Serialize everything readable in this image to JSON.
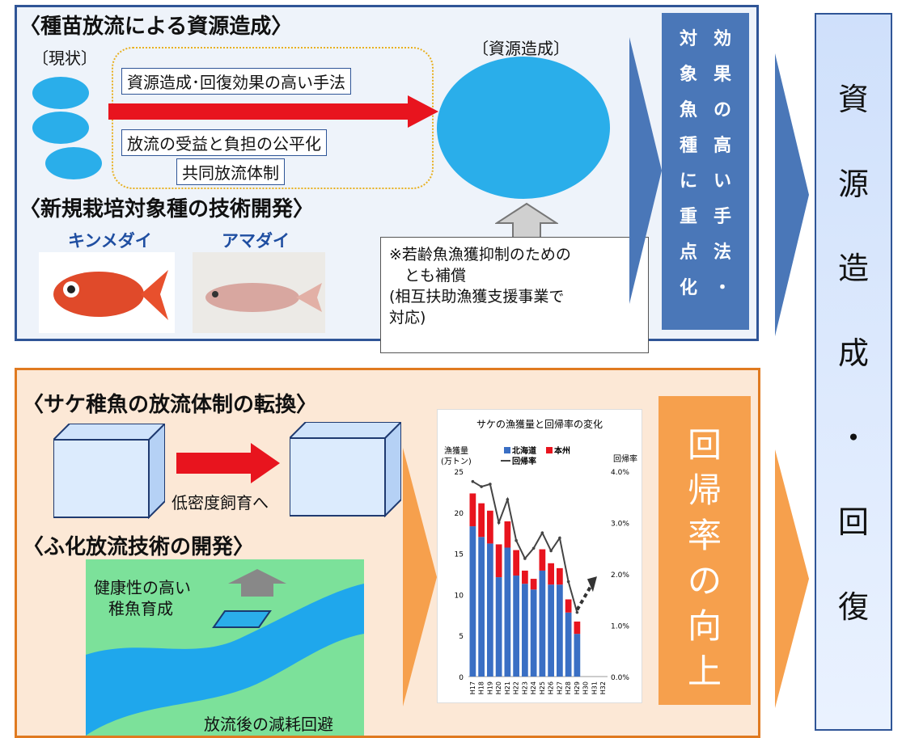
{
  "top_panel": {
    "title": "〈種苗放流による資源造成〉",
    "current_label": "〔現状〕",
    "resource_label": "〔資源造成〕",
    "method1": "資源造成･回復効果の高い手法",
    "method2": "放流の受益と負担の公平化",
    "method3": "共同放流体制",
    "new_species_title": "〈新規栽培対象種の技術開発〉",
    "species1": "キンメダイ",
    "species2": "アマダイ",
    "note_lines": [
      "※若齢魚漁獲抑制のための",
      "　とも補償",
      "(相互扶助漁獲支援事業で",
      " 対応)"
    ],
    "blue_col_left": [
      "対",
      "象",
      "魚",
      "種",
      "に",
      "重",
      "点",
      "化"
    ],
    "blue_col_right": [
      "効",
      "果",
      "の",
      "高",
      "い",
      "手",
      "法",
      "・"
    ]
  },
  "bottom_panel": {
    "title": "〈サケ稚魚の放流体制の転換〉",
    "low_density": "低密度飼育へ",
    "tech_title": "〈ふ化放流技術の開発〉",
    "healthy_lines": [
      "健康性の高い",
      "稚魚育成"
    ],
    "avoid_loss": "放流後の減耗回避",
    "orange_col": [
      "回",
      "帰",
      "率",
      "の",
      "向",
      "上"
    ]
  },
  "right_column": [
    "資",
    "源",
    "造",
    "成",
    "・",
    "回",
    "復"
  ],
  "colors": {
    "hokkaido": "#3a6fc4",
    "honshu": "#e8141e",
    "return_rate": "#444444"
  },
  "chart_data": {
    "type": "bar",
    "title": "サケの漁獲量と回帰率の変化",
    "ylabel": "漁獲量",
    "ylabel_unit": "(万トン)",
    "y2label": "回帰率",
    "ylim": [
      0,
      25
    ],
    "y2lim": [
      0,
      4
    ],
    "yticks": [
      "0",
      "5",
      "10",
      "15",
      "20",
      "25"
    ],
    "y2ticks": [
      "0.0%",
      "1.0%",
      "2.0%",
      "3.0%",
      "4.0%"
    ],
    "categories": [
      "H17",
      "H18",
      "H19",
      "H20",
      "H21",
      "H22",
      "H23",
      "H24",
      "H25",
      "H26",
      "H27",
      "H28",
      "H29",
      "H30",
      "H31",
      "H32"
    ],
    "series": [
      {
        "name": "北海道",
        "type": "bar",
        "values": [
          18.3,
          17.0,
          16.2,
          12.1,
          15.7,
          12.3,
          11.3,
          10.6,
          12.9,
          11.2,
          11.2,
          7.8,
          5.2,
          null,
          null,
          null
        ]
      },
      {
        "name": "本州",
        "type": "bar",
        "values": [
          4.0,
          4.1,
          4.0,
          4.0,
          3.2,
          3.1,
          1.6,
          1.3,
          2.6,
          2.6,
          2.0,
          1.6,
          1.5,
          null,
          null,
          null
        ]
      },
      {
        "name": "回帰率",
        "type": "line",
        "values": [
          3.8,
          3.7,
          3.75,
          3.0,
          3.45,
          2.65,
          2.3,
          2.5,
          2.8,
          2.45,
          2.7,
          1.85,
          1.25,
          null,
          null,
          null
        ]
      }
    ]
  }
}
